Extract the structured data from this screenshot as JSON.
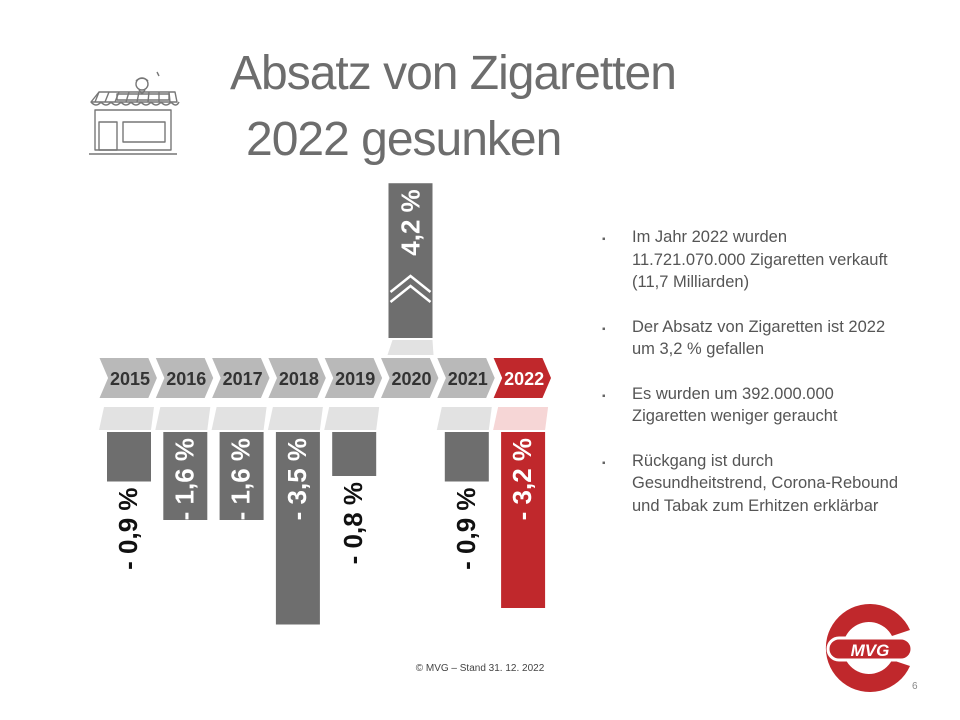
{
  "title": {
    "line1": "Absatz von Zigaretten",
    "line2": "2022 gesunken"
  },
  "icons": {
    "shop": "shop-icon",
    "up_arrow": "chevron-up-icon",
    "logo": "mvg-logo"
  },
  "colors": {
    "grey": "#6e6e6e",
    "red": "#c0282c",
    "arrow_grey": "#b9b9b9",
    "light_grey": "#e2e2e2",
    "light_red": "#f6d6d6",
    "text_grey": "#6d6d6d"
  },
  "chart_data": {
    "type": "bar",
    "categories": [
      "2015",
      "2016",
      "2017",
      "2018",
      "2019",
      "2020",
      "2021",
      "2022"
    ],
    "values": [
      -0.9,
      -1.6,
      -1.6,
      -3.5,
      -0.8,
      4.2,
      -0.9,
      -3.2
    ],
    "labels": [
      "- 0,9 %",
      "- 1,6 %",
      "- 1,6 %",
      "- 3,5 %",
      "- 0,8 %",
      "4,2 %",
      "- 0,9 %",
      "- 3,2 %"
    ],
    "highlight": "2022"
  },
  "bullets": [
    "Im Jahr 2022 wurden 11.721.070.000 Zigaretten verkauft (11,7 Milliarden)",
    "Der Absatz von Zigaretten ist 2022 um 3,2 % gefallen",
    "Es wurden um 392.000.000 Zigaretten weniger geraucht",
    "Rückgang ist durch Gesundheitstrend, Corona-Rebound und Tabak zum Erhitzen erklärbar"
  ],
  "bullet_marker": "▪",
  "footer": "© MVG – Stand 31. 12. 2022",
  "page_number": "6",
  "logo_text": "MVG"
}
